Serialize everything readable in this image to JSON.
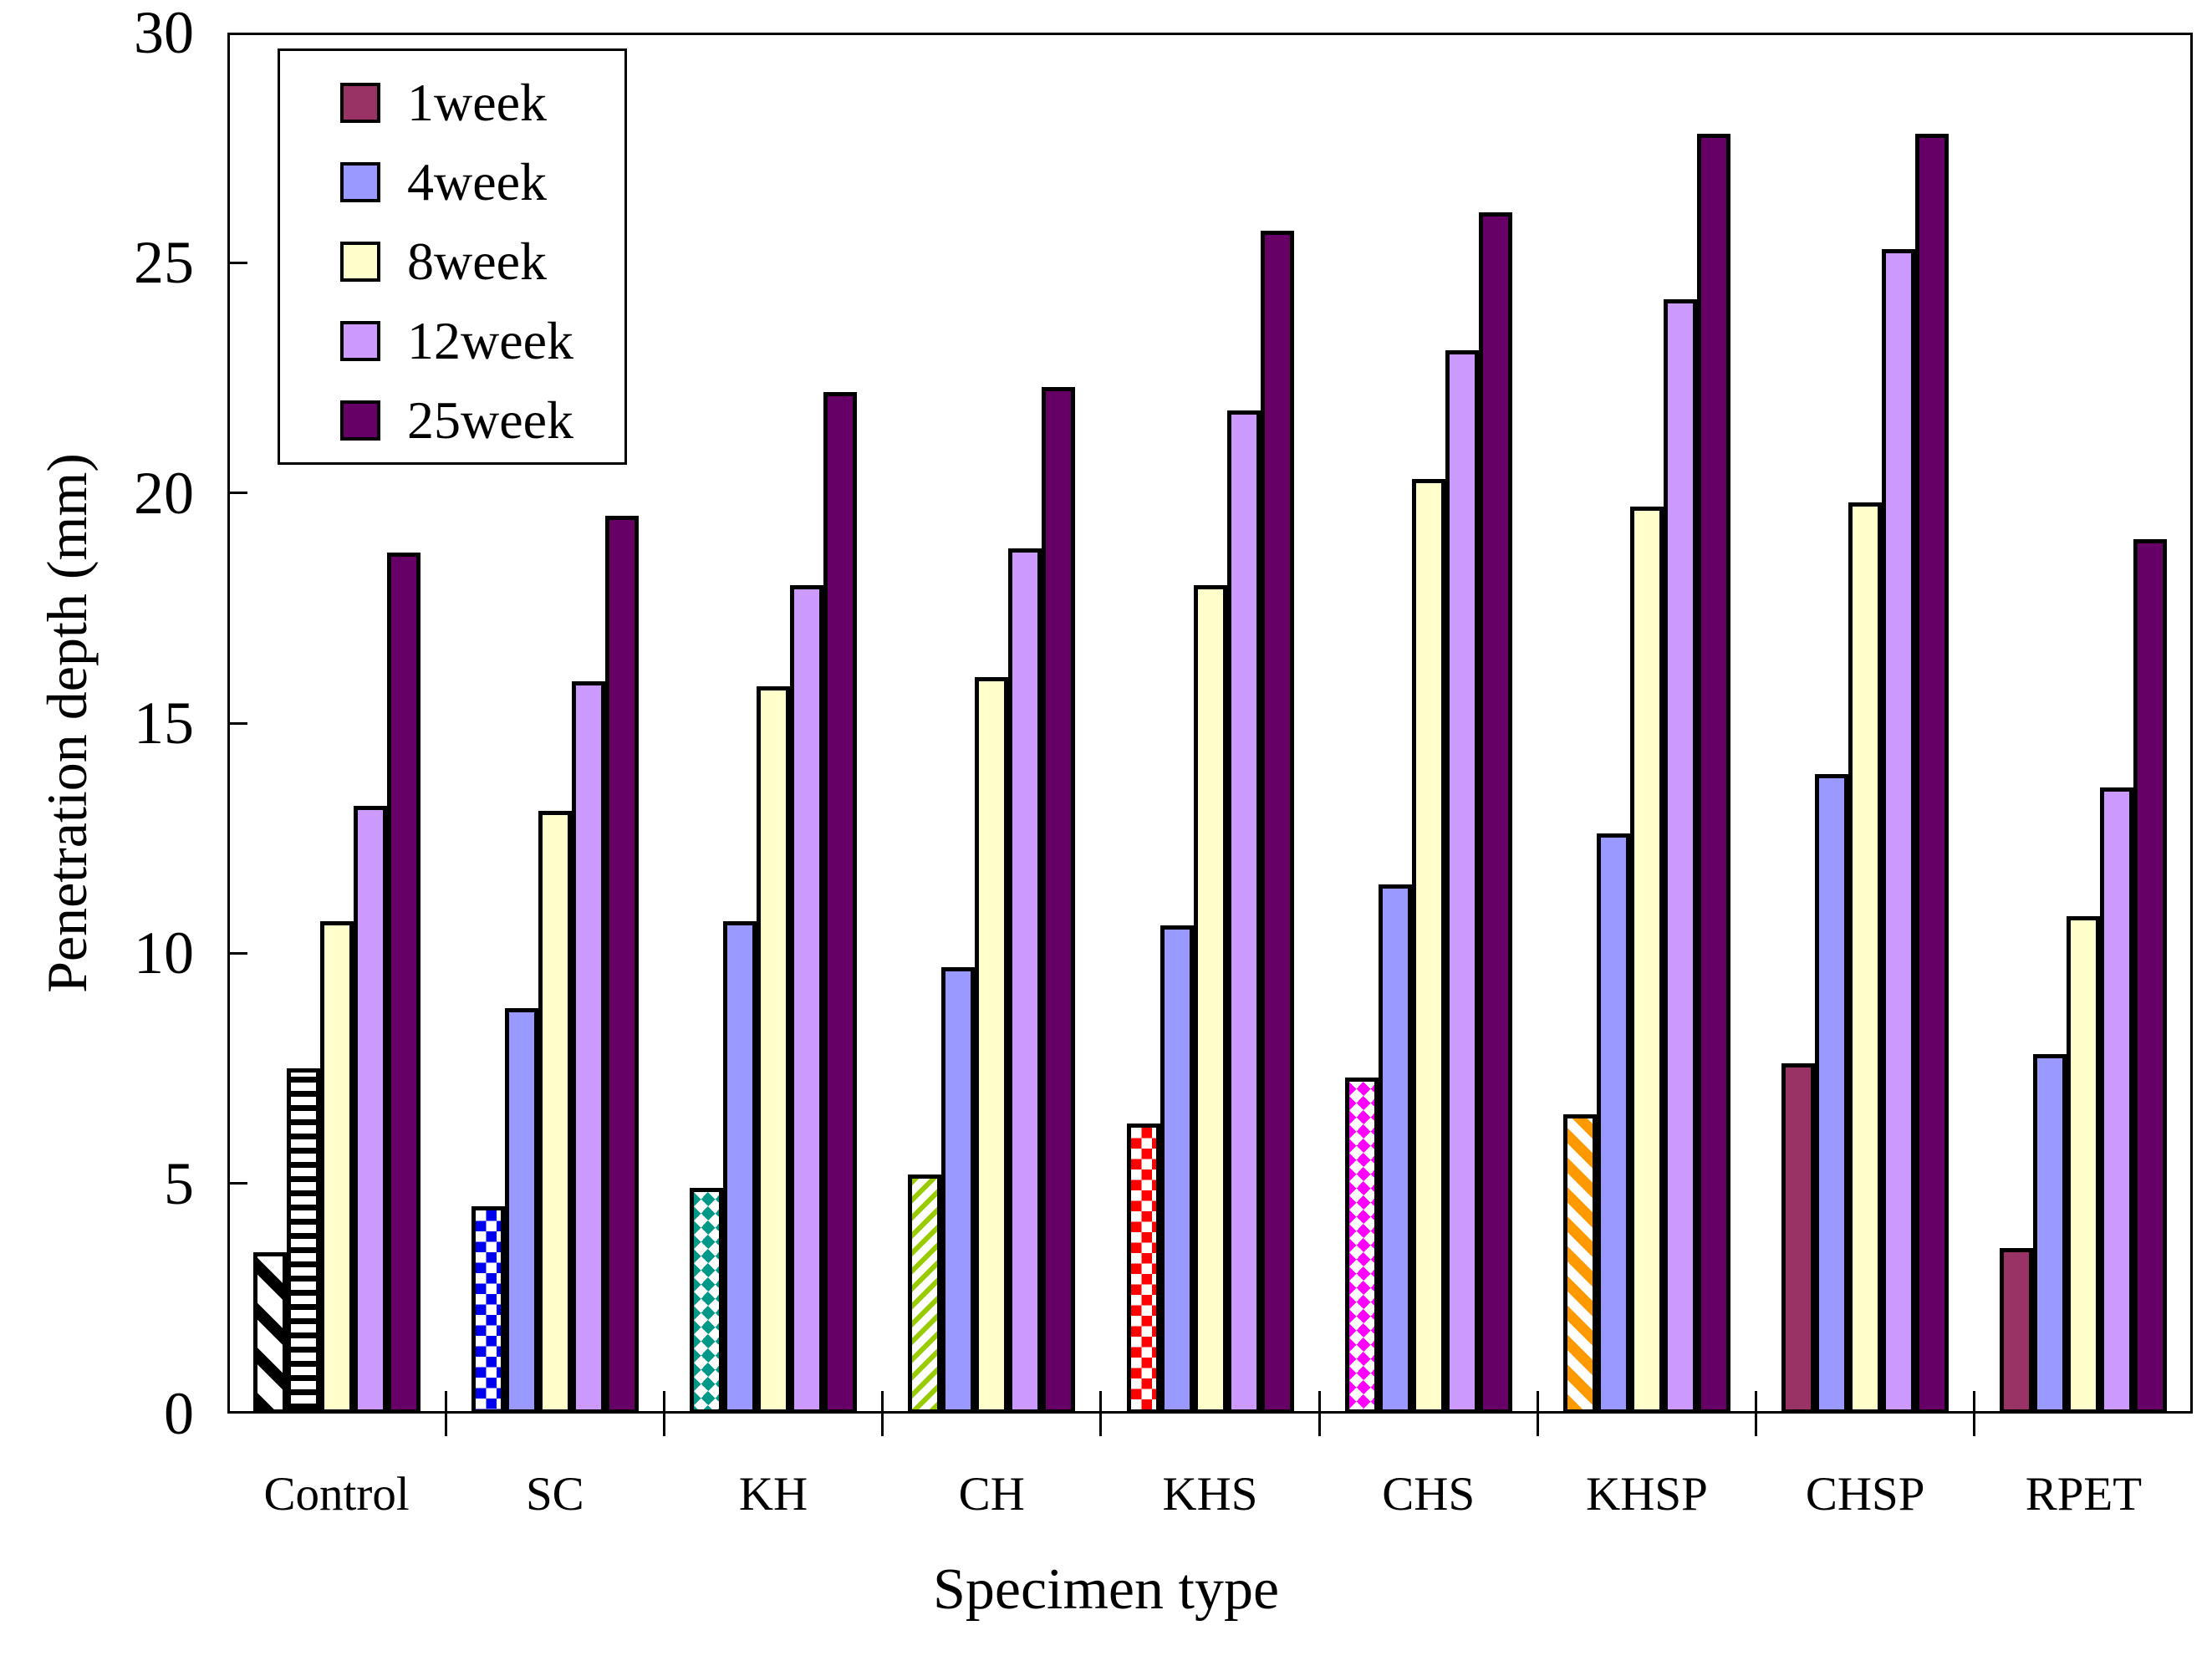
{
  "chart_data": {
    "type": "bar",
    "title": "",
    "xlabel": "Specimen type",
    "ylabel": "Penetration depth (mm)",
    "ylim": [
      0,
      30
    ],
    "y_ticks": [
      0,
      5,
      10,
      15,
      20,
      25,
      30
    ],
    "grid": false,
    "legend_position": "top-left-inside",
    "categories": [
      "Control",
      "SC",
      "KH",
      "CH",
      "KHS",
      "CHS",
      "KHSP",
      "CHSP",
      "RPET"
    ],
    "series": [
      {
        "name": "1week",
        "color": "#993366",
        "values": [
          3.5,
          4.5,
          4.9,
          5.2,
          6.3,
          7.3,
          6.5,
          7.6,
          3.6
        ],
        "point_patterns": [
          {
            "pattern": "diag-stripe-bold",
            "color": "#000000"
          },
          {
            "pattern": "checker",
            "color": "#0000EE"
          },
          {
            "pattern": "diamond",
            "color": "#009988"
          },
          {
            "pattern": "diag-stripe-thin",
            "color": "#99CC00"
          },
          {
            "pattern": "checker",
            "color": "#FF0000"
          },
          {
            "pattern": "diamond",
            "color": "#FF00FF"
          },
          {
            "pattern": "diag-stripe-med",
            "color": "#FF9900"
          },
          {
            "pattern": "solid",
            "color": "#993366"
          },
          {
            "pattern": "solid",
            "color": "#993366"
          }
        ]
      },
      {
        "name": "4week",
        "color": "#9999FF",
        "values": [
          7.5,
          8.8,
          10.7,
          9.7,
          10.6,
          11.5,
          12.6,
          13.9,
          7.8
        ],
        "point_patterns": [
          {
            "pattern": "horiz-stripe",
            "color": "#000000"
          },
          null,
          null,
          null,
          null,
          null,
          null,
          null,
          null
        ]
      },
      {
        "name": "8week",
        "color": "#FFFFCC",
        "values": [
          10.7,
          13.1,
          15.8,
          16.0,
          18.0,
          20.3,
          19.7,
          19.8,
          10.8
        ]
      },
      {
        "name": "12week",
        "color": "#CC99FF",
        "values": [
          13.2,
          15.9,
          18.0,
          18.8,
          21.8,
          23.1,
          24.2,
          25.3,
          13.6
        ]
      },
      {
        "name": "25week",
        "color": "#660066",
        "values": [
          18.7,
          19.5,
          22.2,
          22.3,
          25.7,
          26.1,
          27.8,
          27.8,
          19.0
        ]
      }
    ]
  }
}
